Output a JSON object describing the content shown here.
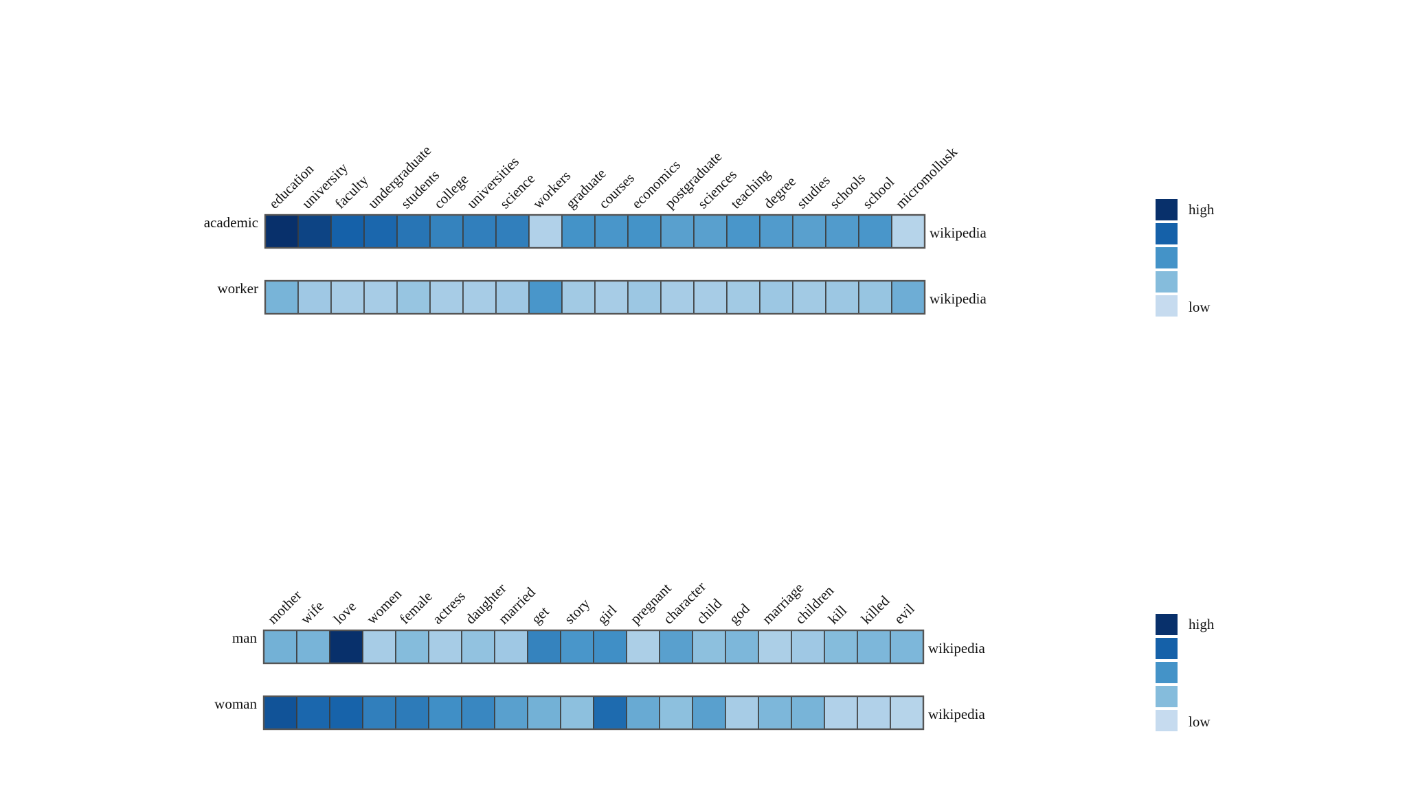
{
  "colors": {
    "scale": [
      "#c6dbef",
      "#85bcdc",
      "#4493c8",
      "#1561a9",
      "#08306b"
    ],
    "cell_border": "#3c3c3c"
  },
  "chart_data": [
    {
      "type": "heatmap",
      "title": "",
      "words": [
        "education",
        "university",
        "faculty",
        "undergraduate",
        "students",
        "college",
        "universities",
        "science",
        "workers",
        "graduate",
        "courses",
        "economics",
        "postgraduate",
        "sciences",
        "teaching",
        "degree",
        "studies",
        "schools",
        "school",
        "micromollusk"
      ],
      "rows": [
        {
          "label": "academic",
          "source": "wikipedia",
          "values": [
            1.0,
            0.9,
            0.75,
            0.72,
            0.65,
            0.58,
            0.6,
            0.6,
            0.08,
            0.5,
            0.48,
            0.5,
            0.42,
            0.42,
            0.48,
            0.45,
            0.42,
            0.45,
            0.48,
            0.06
          ]
        },
        {
          "label": "worker",
          "source": "wikipedia",
          "values": [
            0.3,
            0.15,
            0.12,
            0.12,
            0.18,
            0.12,
            0.12,
            0.15,
            0.48,
            0.14,
            0.12,
            0.16,
            0.12,
            0.12,
            0.14,
            0.16,
            0.14,
            0.16,
            0.18,
            0.34
          ]
        }
      ],
      "legend": {
        "high_label": "high",
        "low_label": "low",
        "steps": 5
      }
    },
    {
      "type": "heatmap",
      "title": "",
      "words": [
        "mother",
        "wife",
        "love",
        "women",
        "female",
        "actress",
        "daughter",
        "married",
        "get",
        "story",
        "girl",
        "pregnant",
        "character",
        "child",
        "god",
        "marriage",
        "children",
        "kill",
        "killed",
        "evil"
      ],
      "rows": [
        {
          "label": "man",
          "source": "wikipedia",
          "values": [
            0.32,
            0.3,
            1.0,
            0.12,
            0.25,
            0.12,
            0.2,
            0.15,
            0.58,
            0.48,
            0.52,
            0.1,
            0.42,
            0.22,
            0.28,
            0.1,
            0.15,
            0.25,
            0.28,
            0.28
          ]
        },
        {
          "label": "woman",
          "source": "wikipedia",
          "values": [
            0.82,
            0.72,
            0.74,
            0.6,
            0.62,
            0.52,
            0.56,
            0.42,
            0.32,
            0.22,
            0.7,
            0.36,
            0.22,
            0.42,
            0.12,
            0.28,
            0.3,
            0.08,
            0.08,
            0.06
          ]
        }
      ],
      "legend": {
        "high_label": "high",
        "low_label": "low",
        "steps": 5
      }
    }
  ]
}
